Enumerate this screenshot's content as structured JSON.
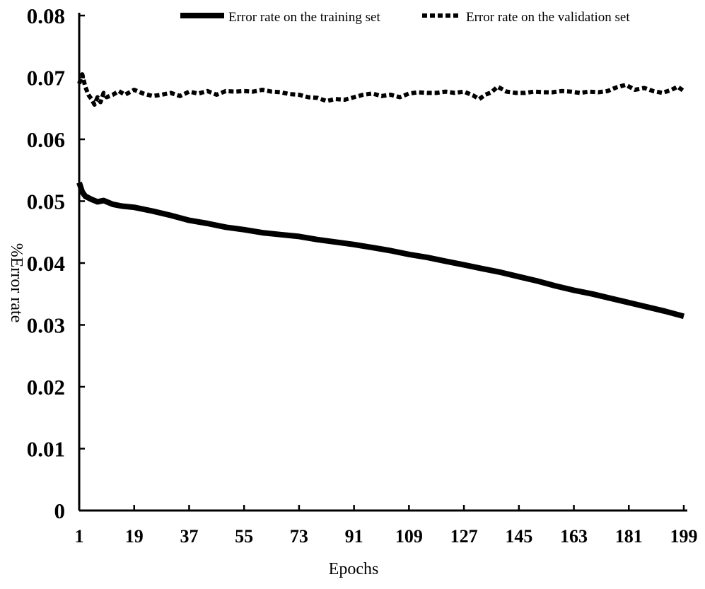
{
  "chart_data": {
    "type": "line",
    "xlabel": "Epochs",
    "ylabel": "%Error rate",
    "xlim": [
      1,
      199
    ],
    "ylim": [
      0,
      0.08
    ],
    "x_ticks": [
      1,
      19,
      37,
      55,
      73,
      91,
      109,
      127,
      145,
      163,
      181,
      199
    ],
    "x_tick_labels": [
      "1",
      "19",
      "37",
      "55",
      "73",
      "91",
      "109",
      "127",
      "145",
      "163",
      "181",
      "199"
    ],
    "y_ticks": [
      0,
      0.01,
      0.02,
      0.03,
      0.04,
      0.05,
      0.06,
      0.07,
      0.08
    ],
    "y_tick_labels": [
      "0",
      "0.01",
      "0.02",
      "0.03",
      "0.04",
      "0.05",
      "0.06",
      "0.07",
      "0.08"
    ],
    "legend_position": "top",
    "grid": false,
    "series": [
      {
        "name": "Error rate on the training set",
        "style": "solid",
        "color": "#000000",
        "x": [
          1,
          2,
          3,
          5,
          7,
          9,
          12,
          15,
          19,
          25,
          31,
          37,
          43,
          49,
          55,
          61,
          67,
          73,
          79,
          85,
          91,
          97,
          103,
          109,
          115,
          121,
          127,
          133,
          139,
          145,
          151,
          157,
          163,
          169,
          175,
          181,
          187,
          193,
          199
        ],
        "y": [
          0.053,
          0.0515,
          0.0508,
          0.0503,
          0.0499,
          0.0501,
          0.0495,
          0.0492,
          0.049,
          0.0484,
          0.0477,
          0.0469,
          0.0464,
          0.0458,
          0.0454,
          0.0449,
          0.0446,
          0.0443,
          0.0438,
          0.0434,
          0.043,
          0.0425,
          0.042,
          0.0414,
          0.0409,
          0.0403,
          0.0397,
          0.0391,
          0.0385,
          0.0378,
          0.0371,
          0.0363,
          0.0356,
          0.035,
          0.0343,
          0.0336,
          0.0329,
          0.0322,
          0.0314
        ]
      },
      {
        "name": "Error rate on the validation set",
        "style": "dashed",
        "color": "#000000",
        "x": [
          1,
          2,
          3,
          4,
          5,
          6,
          7,
          8,
          9,
          10,
          12,
          14,
          16,
          19,
          22,
          25,
          28,
          31,
          34,
          37,
          40,
          43,
          46,
          49,
          52,
          55,
          58,
          61,
          64,
          67,
          70,
          73,
          76,
          79,
          82,
          85,
          88,
          91,
          94,
          97,
          100,
          103,
          106,
          109,
          112,
          115,
          118,
          121,
          124,
          127,
          130,
          132,
          134,
          136,
          138,
          141,
          144,
          147,
          150,
          153,
          156,
          159,
          162,
          165,
          168,
          171,
          174,
          177,
          180,
          183,
          186,
          189,
          192,
          195,
          197,
          199
        ],
        "y": [
          0.069,
          0.0705,
          0.0685,
          0.0672,
          0.0665,
          0.0656,
          0.0668,
          0.066,
          0.0675,
          0.0668,
          0.0672,
          0.0678,
          0.0672,
          0.068,
          0.0674,
          0.067,
          0.0672,
          0.0675,
          0.067,
          0.0677,
          0.0674,
          0.0678,
          0.0672,
          0.0678,
          0.0677,
          0.0678,
          0.0677,
          0.068,
          0.0677,
          0.0676,
          0.0673,
          0.0672,
          0.0668,
          0.0667,
          0.0662,
          0.0665,
          0.0664,
          0.0668,
          0.0672,
          0.0674,
          0.067,
          0.0672,
          0.0668,
          0.0674,
          0.0676,
          0.0675,
          0.0675,
          0.0677,
          0.0675,
          0.0677,
          0.0671,
          0.0665,
          0.0672,
          0.0676,
          0.0685,
          0.0677,
          0.0675,
          0.0675,
          0.0677,
          0.0676,
          0.0676,
          0.0678,
          0.0677,
          0.0675,
          0.0677,
          0.0676,
          0.0678,
          0.0684,
          0.0688,
          0.068,
          0.0683,
          0.0678,
          0.0675,
          0.068,
          0.0685,
          0.0678
        ]
      }
    ]
  }
}
